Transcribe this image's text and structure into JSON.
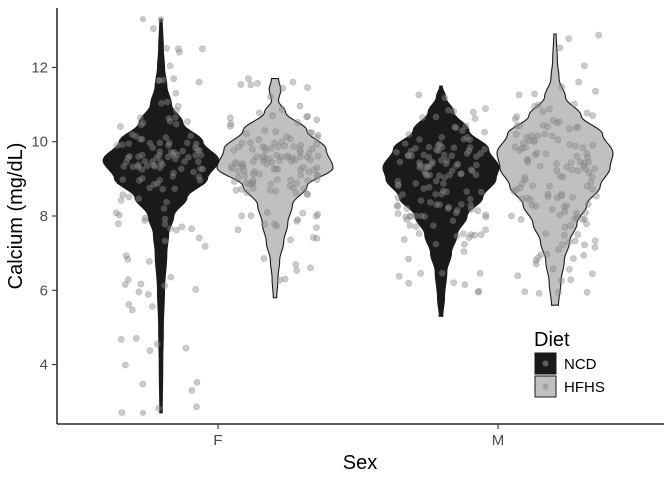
{
  "chart_data": {
    "type": "violin",
    "title": "",
    "xlabel": "Sex",
    "ylabel": "Calcium (mg/dL)",
    "categories": [
      "F",
      "M"
    ],
    "yticks": [
      4,
      6,
      8,
      10,
      12
    ],
    "ylim": [
      2.4,
      13.6
    ],
    "grid": false,
    "legend": {
      "title": "Diet",
      "position": "bottom-right-inside",
      "entries": [
        {
          "label": "NCD",
          "color": "#1a1a1a"
        },
        {
          "label": "HFHS",
          "color": "#c0c0c0"
        }
      ]
    },
    "series": [
      {
        "name": "NCD",
        "color": "#1a1a1a",
        "violins": [
          {
            "category": "F",
            "min": 2.7,
            "max": 13.3,
            "density": [
              [
                2.7,
                0.02
              ],
              [
                4,
                0.03
              ],
              [
                5,
                0.04
              ],
              [
                6,
                0.06
              ],
              [
                7,
                0.1
              ],
              [
                7.5,
                0.13
              ],
              [
                8,
                0.22
              ],
              [
                8.5,
                0.45
              ],
              [
                9,
                0.8
              ],
              [
                9.5,
                1.0
              ],
              [
                10,
                0.72
              ],
              [
                10.5,
                0.38
              ],
              [
                11,
                0.18
              ],
              [
                11.5,
                0.1
              ],
              [
                12,
                0.06
              ],
              [
                12.5,
                0.04
              ],
              [
                13.3,
                0.02
              ]
            ]
          },
          {
            "category": "M",
            "min": 5.3,
            "max": 11.5,
            "density": [
              [
                5.3,
                0.03
              ],
              [
                5.8,
                0.06
              ],
              [
                6.5,
                0.1
              ],
              [
                7,
                0.18
              ],
              [
                7.5,
                0.28
              ],
              [
                8,
                0.45
              ],
              [
                8.5,
                0.72
              ],
              [
                9,
                0.95
              ],
              [
                9.3,
                1.0
              ],
              [
                9.8,
                0.82
              ],
              [
                10.3,
                0.48
              ],
              [
                10.8,
                0.22
              ],
              [
                11.2,
                0.08
              ],
              [
                11.5,
                0.02
              ]
            ]
          }
        ]
      },
      {
        "name": "HFHS",
        "color": "#c0c0c0",
        "violins": [
          {
            "category": "F",
            "min": 5.8,
            "max": 11.7,
            "density": [
              [
                5.8,
                0.03
              ],
              [
                6.3,
                0.05
              ],
              [
                6.8,
                0.08
              ],
              [
                7.3,
                0.15
              ],
              [
                7.8,
                0.22
              ],
              [
                8.3,
                0.3
              ],
              [
                8.8,
                0.55
              ],
              [
                9.3,
                1.0
              ],
              [
                9.8,
                0.88
              ],
              [
                10.3,
                0.55
              ],
              [
                10.8,
                0.18
              ],
              [
                11.1,
                0.06
              ],
              [
                11.4,
                0.1
              ],
              [
                11.7,
                0.06
              ]
            ]
          },
          {
            "category": "M",
            "min": 5.6,
            "max": 12.9,
            "density": [
              [
                5.6,
                0.06
              ],
              [
                6.2,
                0.1
              ],
              [
                6.8,
                0.16
              ],
              [
                7.3,
                0.25
              ],
              [
                7.8,
                0.38
              ],
              [
                8.3,
                0.55
              ],
              [
                8.8,
                0.78
              ],
              [
                9.3,
                0.95
              ],
              [
                9.7,
                1.0
              ],
              [
                10.2,
                0.82
              ],
              [
                10.7,
                0.45
              ],
              [
                11.2,
                0.18
              ],
              [
                11.7,
                0.07
              ],
              [
                12.2,
                0.04
              ],
              [
                12.9,
                0.02
              ]
            ]
          }
        ]
      }
    ],
    "points_note_free": true
  }
}
